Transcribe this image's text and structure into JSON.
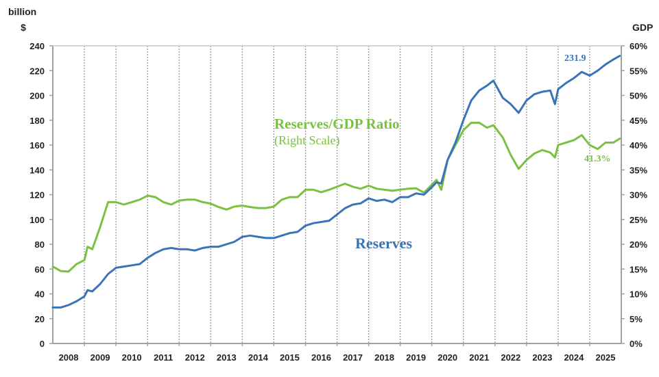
{
  "chart_data": {
    "type": "line",
    "title": "",
    "left_axis": {
      "unit_line1": "billion",
      "unit_line2": "$",
      "range": [
        0,
        240
      ],
      "ticks": [
        0,
        20,
        40,
        60,
        80,
        100,
        120,
        140,
        160,
        180,
        200,
        220,
        240
      ],
      "tick_labels": [
        "0",
        "20",
        "40",
        "60",
        "80",
        "100",
        "120",
        "140",
        "160",
        "180",
        "200",
        "220",
        "240"
      ]
    },
    "right_axis": {
      "unit": "GDP",
      "range": [
        0,
        60
      ],
      "ticks": [
        0,
        5,
        10,
        15,
        20,
        25,
        30,
        35,
        40,
        45,
        50,
        55,
        60
      ],
      "tick_labels": [
        "0%",
        "5%",
        "10%",
        "15%",
        "20%",
        "25%",
        "30%",
        "35%",
        "40%",
        "45%",
        "50%",
        "55%",
        "60%"
      ]
    },
    "x_axis": {
      "range": [
        2008,
        2026
      ],
      "categories": [
        "2008",
        "2009",
        "2010",
        "2011",
        "2012",
        "2013",
        "2014",
        "2015",
        "2016",
        "2017",
        "2018",
        "2019",
        "2020",
        "2021",
        "2022",
        "2023",
        "2024",
        "2025"
      ],
      "gridlines": "dotted vertical at year boundaries"
    },
    "series": [
      {
        "name": "Reserves",
        "axis": "left",
        "color": "#3a73b8",
        "label": "Reserves",
        "end_label": "231.9",
        "x": [
          2008.0,
          2008.25,
          2008.5,
          2008.75,
          2009.0,
          2009.1,
          2009.25,
          2009.5,
          2009.75,
          2010.0,
          2010.25,
          2010.5,
          2010.75,
          2011.0,
          2011.25,
          2011.5,
          2011.75,
          2012.0,
          2012.25,
          2012.5,
          2012.75,
          2013.0,
          2013.25,
          2013.5,
          2013.75,
          2014.0,
          2014.25,
          2014.5,
          2014.75,
          2015.0,
          2015.25,
          2015.5,
          2015.75,
          2016.0,
          2016.25,
          2016.5,
          2016.75,
          2017.0,
          2017.25,
          2017.5,
          2017.75,
          2018.0,
          2018.25,
          2018.5,
          2018.75,
          2019.0,
          2019.25,
          2019.5,
          2019.75,
          2020.0,
          2020.15,
          2020.3,
          2020.5,
          2020.75,
          2021.0,
          2021.25,
          2021.5,
          2021.75,
          2021.95,
          2022.25,
          2022.5,
          2022.75,
          2023.0,
          2023.25,
          2023.5,
          2023.75,
          2023.9,
          2024.0,
          2024.25,
          2024.5,
          2024.75,
          2025.0,
          2025.25,
          2025.5,
          2025.75,
          2025.95
        ],
        "values": [
          29,
          29,
          31,
          34,
          38,
          43,
          42,
          48,
          56,
          61,
          62,
          63,
          64,
          69,
          73,
          76,
          77,
          76,
          76,
          75,
          77,
          78,
          78,
          80,
          82,
          86,
          87,
          86,
          85,
          85,
          87,
          89,
          90,
          95,
          97,
          98,
          99,
          104,
          109,
          112,
          113,
          117,
          115,
          116,
          114,
          118,
          118,
          121,
          120,
          126,
          130,
          129,
          148,
          162,
          180,
          196,
          204,
          208,
          212,
          198,
          193,
          186,
          196,
          201,
          203,
          204,
          193,
          205,
          210,
          214,
          219,
          216,
          220,
          225,
          229,
          231.9
        ]
      },
      {
        "name": "Reserves/GDP Ratio (Right Scale)",
        "axis": "right",
        "color": "#7ac142",
        "label_line1": "Reserves/GDP Ratio",
        "label_line2": "(Right Scale)",
        "end_label": "41.3%",
        "x": [
          2008.0,
          2008.25,
          2008.5,
          2008.75,
          2009.0,
          2009.1,
          2009.25,
          2009.5,
          2009.75,
          2010.0,
          2010.25,
          2010.5,
          2010.75,
          2011.0,
          2011.25,
          2011.5,
          2011.75,
          2012.0,
          2012.25,
          2012.5,
          2012.75,
          2013.0,
          2013.25,
          2013.5,
          2013.75,
          2014.0,
          2014.25,
          2014.5,
          2014.75,
          2015.0,
          2015.25,
          2015.5,
          2015.75,
          2016.0,
          2016.25,
          2016.5,
          2016.75,
          2017.0,
          2017.25,
          2017.5,
          2017.75,
          2018.0,
          2018.25,
          2018.5,
          2018.75,
          2019.0,
          2019.25,
          2019.5,
          2019.75,
          2020.0,
          2020.15,
          2020.3,
          2020.5,
          2020.75,
          2021.0,
          2021.25,
          2021.5,
          2021.75,
          2021.95,
          2022.25,
          2022.5,
          2022.75,
          2023.0,
          2023.25,
          2023.5,
          2023.75,
          2023.9,
          2024.0,
          2024.25,
          2024.5,
          2024.75,
          2025.0,
          2025.25,
          2025.5,
          2025.75,
          2025.95
        ],
        "values": [
          15.5,
          14.6,
          14.5,
          16.0,
          16.8,
          19.5,
          19.0,
          23.5,
          28.5,
          28.5,
          28.0,
          28.5,
          29.0,
          29.8,
          29.5,
          28.5,
          28.0,
          28.8,
          29.0,
          29.0,
          28.5,
          28.2,
          27.5,
          27.0,
          27.6,
          27.8,
          27.5,
          27.3,
          27.3,
          27.6,
          29.0,
          29.5,
          29.5,
          31.0,
          31.0,
          30.5,
          31.0,
          31.6,
          32.2,
          31.6,
          31.2,
          31.8,
          31.2,
          31.0,
          30.8,
          31.0,
          31.2,
          31.3,
          30.4,
          32.0,
          33.0,
          31.0,
          37.0,
          40.0,
          43.0,
          44.5,
          44.5,
          43.5,
          44.0,
          41.5,
          38.0,
          35.2,
          37.0,
          38.3,
          39.0,
          38.5,
          37.5,
          40.0,
          40.5,
          41.0,
          42.0,
          40.0,
          39.2,
          40.5,
          40.5,
          41.3
        ]
      }
    ],
    "annotations": [
      "Reserves/GDP Ratio",
      "(Right Scale)",
      "Reserves",
      "231.9",
      "41.3%"
    ],
    "grid": "vertical dotted",
    "legend": "inline labels"
  }
}
